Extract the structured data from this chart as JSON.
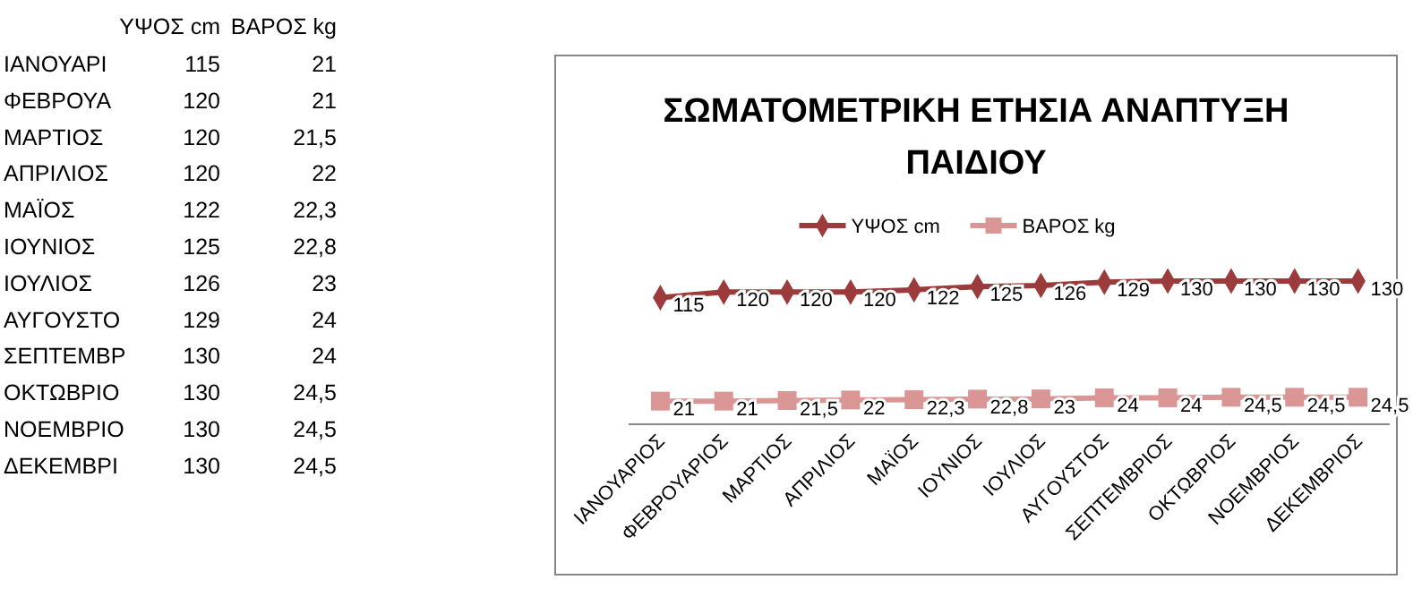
{
  "chart_data": [
    {
      "type": "other",
      "annotations": [
        "ΥΨΟΣ cm",
        "ΒΑΡΟΣ kg",
        "ΙΑΝΟΥΑΡΙ",
        "115",
        "21",
        "ΦΕΒΡΟΥΑ",
        "120",
        "21",
        "ΜΑΡΤΙΟΣ",
        "120",
        "21,5",
        "ΑΠΡΙΛΙΟΣ",
        "120",
        "22",
        "ΜΑΪΟΣ",
        "122",
        "22,3",
        "ΙΟΥΝΙΟΣ",
        "125",
        "22,8",
        "ΙΟΥΛΙΟΣ",
        "126",
        "23",
        "ΑΥΓΟΥΣΤΟ",
        "129",
        "24",
        "ΣΕΠΤΕΜΒΡ",
        "130",
        "24",
        "ΟΚΤΩΒΡΙΟ",
        "130",
        "24,5",
        "ΝΟΕΜΒΡΙΟ",
        "130",
        "24,5",
        "ΔΕΚΕΜΒΡΙ",
        "130",
        "24,5"
      ]
    },
    {
      "type": "line",
      "title": "ΣΩΜΑΤΟΜΕΤΡΙΚΗ ΕΤΗΣΙΑ ΑΝΑΠΤΥΞΗ ΠΑΙΔΙΟΥ",
      "categories": [
        "ΙΑΝΟΥΑΡΙΟΣ",
        "ΦΕΒΡΟΥΑΡΙΟΣ",
        "ΜΑΡΤΙΟΣ",
        "ΑΠΡΙΛΙΟΣ",
        "ΜΑΪΟΣ",
        "ΙΟΥΝΙΟΣ",
        "ΙΟΥΛΙΟΣ",
        "ΑΥΓΟΥΣΤΟΣ",
        "ΣΕΠΤΕΜΒΡΙΟΣ",
        "ΟΚΤΩΒΡΙΟΣ",
        "ΝΟΕΜΒΡΙΟΣ",
        "ΔΕΚΕΜΒΡΙΟΣ"
      ],
      "tick_labels": "x",
      "legend": "top",
      "grid": false,
      "series": [
        {
          "name": "ΥΨΟΣ cm",
          "color": "#9b3b3b",
          "marker": "diamond",
          "values": [
            115,
            120,
            120,
            120,
            122,
            125,
            126,
            129,
            130,
            130,
            130,
            130
          ],
          "value_labels": [
            "115",
            "120",
            "120",
            "120",
            "122",
            "125",
            "126",
            "129",
            "130",
            "130",
            "130",
            "130"
          ]
        },
        {
          "name": "ΒΑΡΟΣ kg",
          "color": "#d99694",
          "marker": "square",
          "values": [
            21,
            21,
            21.5,
            22,
            22.3,
            22.8,
            23,
            24,
            24,
            24.5,
            24.5,
            24.5
          ],
          "value_labels": [
            "21",
            "21",
            "21,5",
            "22",
            "22,3",
            "22,8",
            "23",
            "24",
            "24",
            "24,5",
            "24,5",
            "24,5"
          ]
        }
      ]
    }
  ]
}
